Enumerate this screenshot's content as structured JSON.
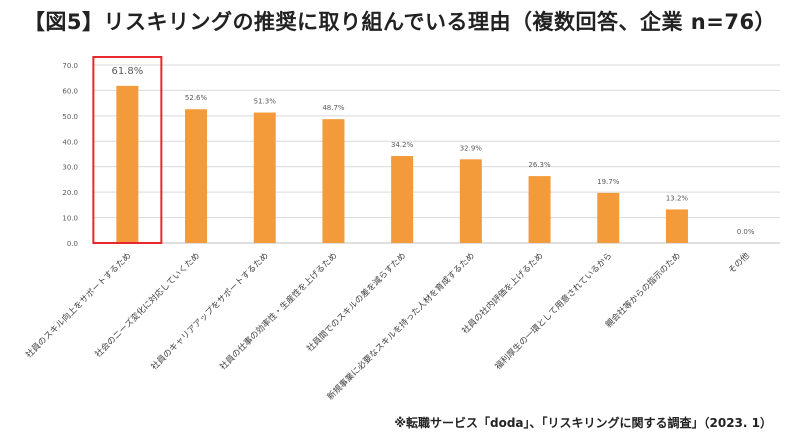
{
  "title": "【図5】リスキリングの推奨に取り組んでいる理由（複数回答、企業 n=76）",
  "footnote": "※転職サービス「doda」、「リスキリングに関する調査」（2023. 1）",
  "colors": {
    "bar": "#F39A3B",
    "highlight": "#E8282E",
    "gridline": "#D9D9D9",
    "axis": "#BFBFBF",
    "text": "#595959"
  },
  "chart_data": {
    "type": "bar",
    "title": "",
    "xlabel": "",
    "ylabel": "",
    "ylim": [
      0,
      70
    ],
    "yticks": [
      "0.0",
      "10.0",
      "20.0",
      "30.0",
      "40.0",
      "50.0",
      "60.0",
      "70.0"
    ],
    "grid": true,
    "highlighted_category_index": 0,
    "categories": [
      "社員のスキル向上をサポートするため",
      "社会のニーズ変化に対応していくため",
      "社員のキャリアアップをサポートするため",
      "社員の仕事の効率性・生産性を上げるため",
      "社員間でのスキルの差を減らすため",
      "新規事業に必要なスキルを持った人材を育成するため",
      "社員の社内評価を上げるため",
      "福利厚生の一環として用意されているから",
      "親会社等からの指示のため",
      "その他"
    ],
    "values": [
      61.8,
      52.6,
      51.3,
      48.7,
      34.2,
      32.9,
      26.3,
      19.7,
      13.2,
      0.0
    ],
    "data_labels": [
      "61.8%",
      "52.6%",
      "51.3%",
      "48.7%",
      "34.2%",
      "32.9%",
      "26.3%",
      "19.7%",
      "13.2%",
      "0.0%"
    ]
  }
}
